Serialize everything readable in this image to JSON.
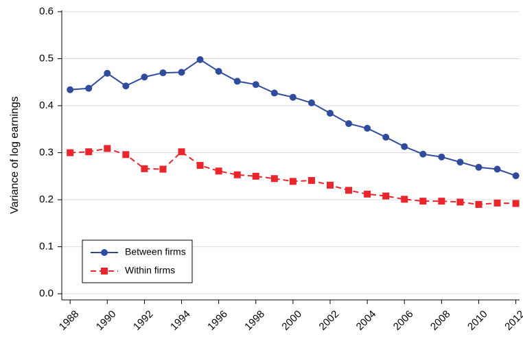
{
  "chart_data": {
    "type": "line",
    "ylabel": "Variance of log earnings",
    "x": [
      1988,
      1989,
      1990,
      1991,
      1992,
      1993,
      1994,
      1995,
      1996,
      1997,
      1998,
      1999,
      2000,
      2001,
      2002,
      2003,
      2004,
      2005,
      2006,
      2007,
      2008,
      2009,
      2010,
      2011,
      2012
    ],
    "series": [
      {
        "name": "Between firms",
        "color": "#2f4b9c",
        "marker": "circle",
        "dash": "solid",
        "values": [
          0.434,
          0.437,
          0.469,
          0.442,
          0.461,
          0.47,
          0.471,
          0.498,
          0.473,
          0.452,
          0.445,
          0.427,
          0.418,
          0.406,
          0.384,
          0.362,
          0.352,
          0.333,
          0.313,
          0.297,
          0.291,
          0.28,
          0.269,
          0.265,
          0.251
        ]
      },
      {
        "name": "Within firms",
        "color": "#e8262b",
        "marker": "square",
        "dash": "dashed",
        "values": [
          0.3,
          0.302,
          0.309,
          0.296,
          0.266,
          0.265,
          0.302,
          0.273,
          0.261,
          0.253,
          0.25,
          0.245,
          0.239,
          0.241,
          0.231,
          0.22,
          0.212,
          0.208,
          0.201,
          0.197,
          0.197,
          0.195,
          0.19,
          0.193,
          0.192
        ]
      }
    ],
    "xlim": [
      1987.55,
      2012.2
    ],
    "xticks": [
      1988,
      1990,
      1992,
      1994,
      1996,
      1998,
      2000,
      2002,
      2004,
      2006,
      2008,
      2010,
      2012
    ],
    "ylim": [
      -0.013,
      0.6
    ],
    "yticks": [
      {
        "value": 0,
        "label": "0.0"
      },
      0.1,
      0.2,
      0.3,
      0.4,
      0.5,
      0.6
    ],
    "grid": true,
    "legend": "lower left"
  }
}
